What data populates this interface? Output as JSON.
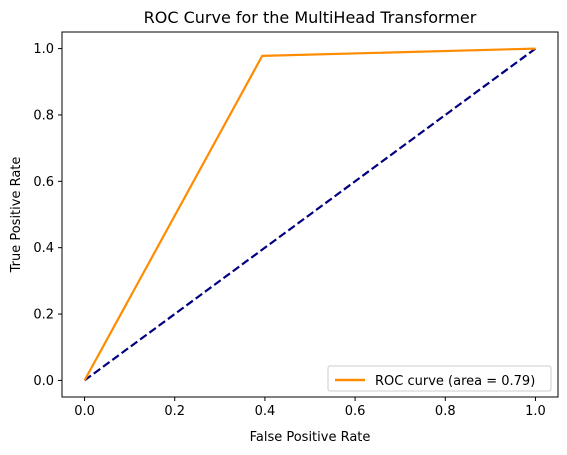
{
  "chart_data": {
    "type": "line",
    "title": "ROC Curve for the MultiHead Transformer",
    "xlabel": "False Positive Rate",
    "ylabel": "True Positive Rate",
    "xlim": [
      -0.05,
      1.05
    ],
    "ylim": [
      -0.05,
      1.05
    ],
    "xticks": [
      0.0,
      0.2,
      0.4,
      0.6,
      0.8,
      1.0
    ],
    "yticks": [
      0.0,
      0.2,
      0.4,
      0.6,
      0.8,
      1.0
    ],
    "xtick_labels": [
      "0.0",
      "0.2",
      "0.4",
      "0.6",
      "0.8",
      "1.0"
    ],
    "ytick_labels": [
      "0.0",
      "0.2",
      "0.4",
      "0.6",
      "0.8",
      "1.0"
    ],
    "grid": false,
    "legend_position": "lower-right",
    "series": [
      {
        "name": "ROC curve (area = 0.79)",
        "color": "#ff8c00",
        "style": "solid",
        "x": [
          0.0,
          0.394,
          1.0
        ],
        "y": [
          0.0,
          0.978,
          1.0
        ]
      },
      {
        "color": "#000080",
        "style": "dashed",
        "x": [
          0.0,
          1.0
        ],
        "y": [
          0.0,
          1.0
        ]
      }
    ]
  }
}
